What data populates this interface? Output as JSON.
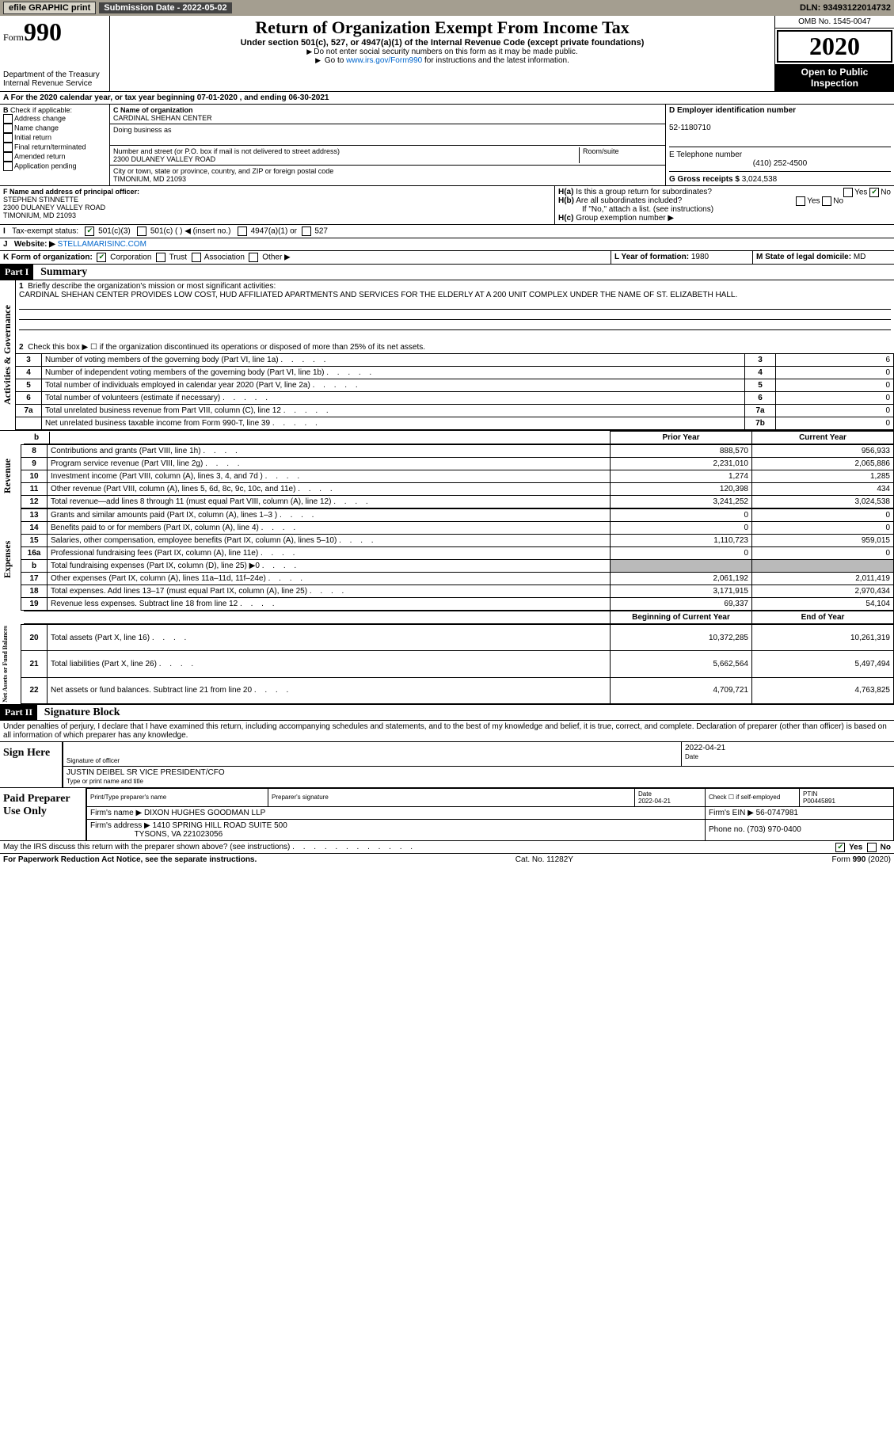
{
  "topbar": {
    "efile": "efile GRAPHIC print",
    "submission_label": "Submission Date - 2022-05-02",
    "dln": "DLN: 93493122014732"
  },
  "header": {
    "form_word": "Form",
    "form_number": "990",
    "dept": "Department of the Treasury",
    "irs": "Internal Revenue Service",
    "title": "Return of Organization Exempt From Income Tax",
    "sub1": "Under section 501(c), 527, or 4947(a)(1) of the Internal Revenue Code (except private foundations)",
    "sub2": "Do not enter social security numbers on this form as it may be made public.",
    "sub3_prefix": "Go to ",
    "sub3_link": "www.irs.gov/Form990",
    "sub3_suffix": " for instructions and the latest information.",
    "omb": "OMB No. 1545-0047",
    "year": "2020",
    "open": "Open to Public Inspection"
  },
  "lineA": "For the 2020 calendar year, or tax year beginning 07-01-2020  , and ending 06-30-2021",
  "B": {
    "label": "Check if applicable:",
    "opts": [
      "Address change",
      "Name change",
      "Initial return",
      "Final return/terminated",
      "Amended return",
      "Application pending"
    ]
  },
  "C": {
    "name_label": "C Name of organization",
    "org_name": "CARDINAL SHEHAN CENTER",
    "dba_label": "Doing business as",
    "addr_label": "Number and street (or P.O. box if mail is not delivered to street address)",
    "room_label": "Room/suite",
    "street": "2300 DULANEY VALLEY ROAD",
    "city_label": "City or town, state or province, country, and ZIP or foreign postal code",
    "city": "TIMONIUM, MD  21093"
  },
  "D": {
    "label": "D Employer identification number",
    "value": "52-1180710"
  },
  "E": {
    "label": "E Telephone number",
    "value": "(410) 252-4500"
  },
  "G": {
    "label": "G Gross receipts $",
    "value": "3,024,538"
  },
  "F": {
    "label": "F  Name and address of principal officer:",
    "name": "STEPHEN STINNETTE",
    "street": "2300 DULANEY VALLEY ROAD",
    "city": "TIMONIUM, MD  21093"
  },
  "H": {
    "a_label": "Is this a group return for subordinates?",
    "a_yes": "Yes",
    "a_no": "No",
    "b_label": "Are all subordinates included?",
    "b_note": "If \"No,\" attach a list. (see instructions)",
    "c_label": "Group exemption number ▶"
  },
  "I": {
    "label": "Tax-exempt status:",
    "c3": "501(c)(3)",
    "c": "501(c) (  ) ◀ (insert no.)",
    "a1": "4947(a)(1) or",
    "s527": "527"
  },
  "J": {
    "label": "Website: ▶",
    "value": "STELLAMARISINC.COM"
  },
  "K": {
    "label": "K Form of organization:",
    "corp": "Corporation",
    "trust": "Trust",
    "assoc": "Association",
    "other": "Other ▶"
  },
  "L": {
    "label": "L Year of formation:",
    "value": "1980"
  },
  "M": {
    "label": "M State of legal domicile:",
    "value": "MD"
  },
  "part1": {
    "hdr": "Part I",
    "title": "Summary"
  },
  "gov": {
    "q1_label": "Briefly describe the organization's mission or most significant activities:",
    "q1_text": "CARDINAL SHEHAN CENTER PROVIDES LOW COST, HUD AFFILIATED APARTMENTS AND SERVICES FOR THE ELDERLY AT A 200 UNIT COMPLEX UNDER THE NAME OF ST. ELIZABETH HALL.",
    "q2": "Check this box ▶ ☐  if the organization discontinued its operations or disposed of more than 25% of its net assets.",
    "rows": [
      {
        "n": "3",
        "t": "Number of voting members of the governing body (Part VI, line 1a)",
        "box": "3",
        "v": "6"
      },
      {
        "n": "4",
        "t": "Number of independent voting members of the governing body (Part VI, line 1b)",
        "box": "4",
        "v": "0"
      },
      {
        "n": "5",
        "t": "Total number of individuals employed in calendar year 2020 (Part V, line 2a)",
        "box": "5",
        "v": "0"
      },
      {
        "n": "6",
        "t": "Total number of volunteers (estimate if necessary)",
        "box": "6",
        "v": "0"
      },
      {
        "n": "7a",
        "t": "Total unrelated business revenue from Part VIII, column (C), line 12",
        "box": "7a",
        "v": "0"
      },
      {
        "n": "",
        "t": "Net unrelated business taxable income from Form 990-T, line 39",
        "box": "7b",
        "v": "0"
      }
    ]
  },
  "fin": {
    "hdr_prior": "Prior Year",
    "hdr_curr": "Current Year",
    "revenue": [
      {
        "n": "8",
        "t": "Contributions and grants (Part VIII, line 1h)",
        "p": "888,570",
        "c": "956,933"
      },
      {
        "n": "9",
        "t": "Program service revenue (Part VIII, line 2g)",
        "p": "2,231,010",
        "c": "2,065,886"
      },
      {
        "n": "10",
        "t": "Investment income (Part VIII, column (A), lines 3, 4, and 7d )",
        "p": "1,274",
        "c": "1,285"
      },
      {
        "n": "11",
        "t": "Other revenue (Part VIII, column (A), lines 5, 6d, 8c, 9c, 10c, and 11e)",
        "p": "120,398",
        "c": "434"
      },
      {
        "n": "12",
        "t": "Total revenue—add lines 8 through 11 (must equal Part VIII, column (A), line 12)",
        "p": "3,241,252",
        "c": "3,024,538"
      }
    ],
    "expenses": [
      {
        "n": "13",
        "t": "Grants and similar amounts paid (Part IX, column (A), lines 1–3 )",
        "p": "0",
        "c": "0"
      },
      {
        "n": "14",
        "t": "Benefits paid to or for members (Part IX, column (A), line 4)",
        "p": "0",
        "c": "0"
      },
      {
        "n": "15",
        "t": "Salaries, other compensation, employee benefits (Part IX, column (A), lines 5–10)",
        "p": "1,110,723",
        "c": "959,015"
      },
      {
        "n": "16a",
        "t": "Professional fundraising fees (Part IX, column (A), line 11e)",
        "p": "0",
        "c": "0"
      },
      {
        "n": "b",
        "t": "Total fundraising expenses (Part IX, column (D), line 25) ▶0",
        "p": "shade",
        "c": "shade"
      },
      {
        "n": "17",
        "t": "Other expenses (Part IX, column (A), lines 11a–11d, 11f–24e)",
        "p": "2,061,192",
        "c": "2,011,419"
      },
      {
        "n": "18",
        "t": "Total expenses. Add lines 13–17 (must equal Part IX, column (A), line 25)",
        "p": "3,171,915",
        "c": "2,970,434"
      },
      {
        "n": "19",
        "t": "Revenue less expenses. Subtract line 18 from line 12",
        "p": "69,337",
        "c": "54,104"
      }
    ],
    "net_hdr_beg": "Beginning of Current Year",
    "net_hdr_end": "End of Year",
    "net": [
      {
        "n": "20",
        "t": "Total assets (Part X, line 16)",
        "p": "10,372,285",
        "c": "10,261,319"
      },
      {
        "n": "21",
        "t": "Total liabilities (Part X, line 26)",
        "p": "5,662,564",
        "c": "5,497,494"
      },
      {
        "n": "22",
        "t": "Net assets or fund balances. Subtract line 21 from line 20",
        "p": "4,709,721",
        "c": "4,763,825"
      }
    ]
  },
  "vlabels": {
    "gov": "Activities & Governance",
    "rev": "Revenue",
    "exp": "Expenses",
    "net": "Net Assets or Fund Balances"
  },
  "part2": {
    "hdr": "Part II",
    "title": "Signature Block"
  },
  "sig": {
    "decl": "Under penalties of perjury, I declare that I have examined this return, including accompanying schedules and statements, and to the best of my knowledge and belief, it is true, correct, and complete. Declaration of preparer (other than officer) is based on all information of which preparer has any knowledge.",
    "sign_here": "Sign Here",
    "sig_officer": "Signature of officer",
    "date": "Date",
    "sig_date": "2022-04-21",
    "officer_name": "JUSTIN DEIBEL  SR VICE PRESIDENT/CFO",
    "type_name": "Type or print name and title",
    "paid": "Paid Preparer Use Only",
    "pt_name": "Print/Type preparer's name",
    "pt_sig": "Preparer's signature",
    "pt_date": "2022-04-21",
    "pt_check": "Check ☐ if self-employed",
    "ptin_l": "PTIN",
    "ptin": "P00445891",
    "firm_name_l": "Firm's name  ▶",
    "firm_name": "DIXON HUGHES GOODMAN LLP",
    "firm_ein_l": "Firm's EIN ▶",
    "firm_ein": "56-0747981",
    "firm_addr_l": "Firm's address ▶",
    "firm_addr": "1410 SPRING HILL ROAD SUITE 500",
    "firm_city": "TYSONS, VA  221023056",
    "phone_l": "Phone no.",
    "phone": "(703) 970-0400",
    "discuss": "May the IRS discuss this return with the preparer shown above? (see instructions)",
    "yes": "Yes",
    "no": "No"
  },
  "footer": {
    "pra": "For Paperwork Reduction Act Notice, see the separate instructions.",
    "cat": "Cat. No. 11282Y",
    "form": "Form 990 (2020)"
  }
}
